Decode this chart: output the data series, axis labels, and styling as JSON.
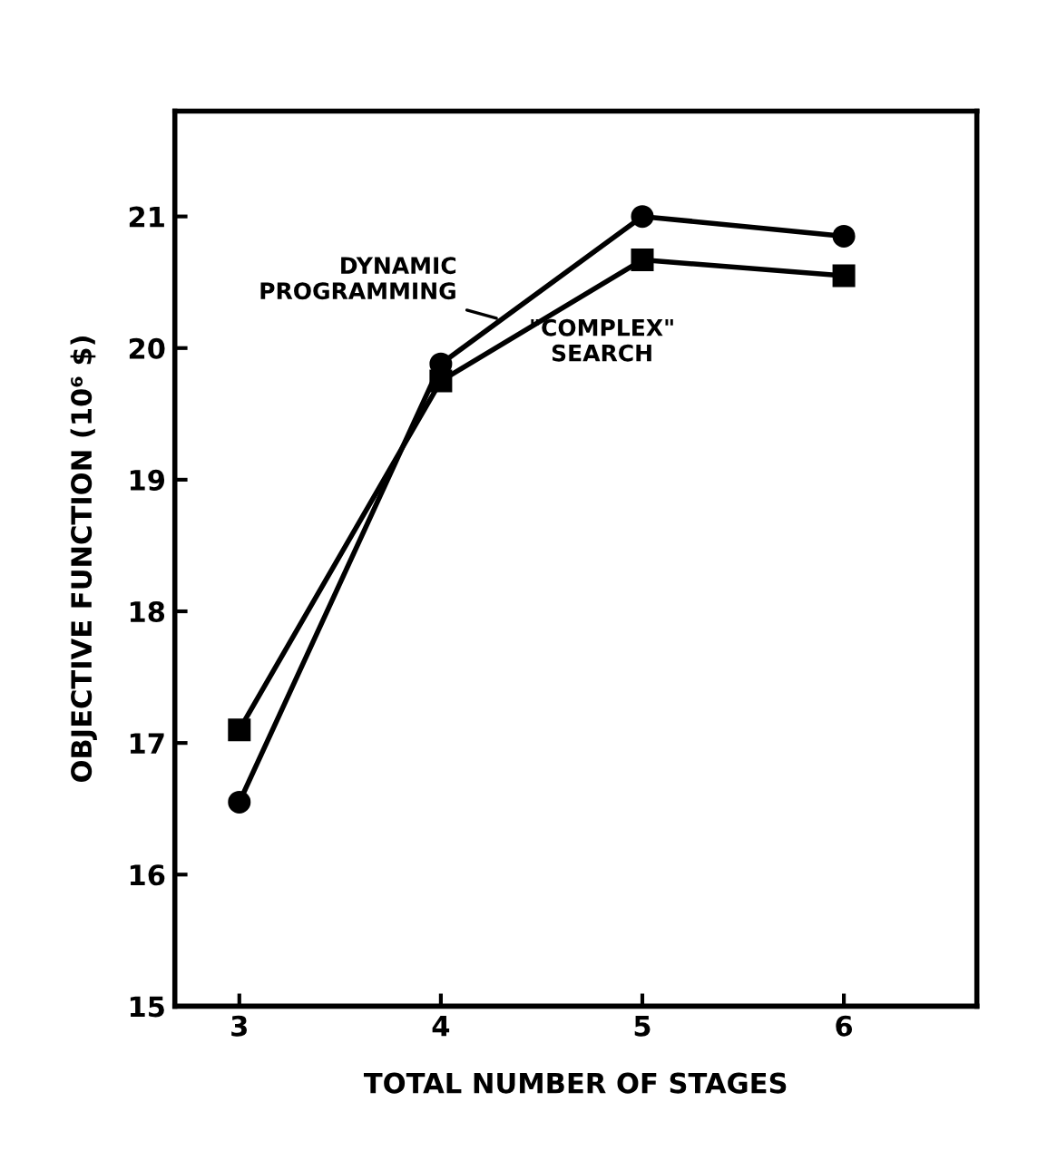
{
  "chart_data": {
    "type": "line",
    "xlabel": "TOTAL NUMBER OF STAGES",
    "ylabel": "OBJECTIVE FUNCTION (10⁶ $)",
    "x": [
      3,
      4,
      5,
      6
    ],
    "series": [
      {
        "name": "DYNAMIC\nPROGRAMMING",
        "color": "#000000",
        "marker": "circle",
        "values": [
          16.55,
          19.88,
          21.0,
          20.85
        ]
      },
      {
        "name": "\"COMPLEX\"\nSEARCH",
        "color": "#000000",
        "marker": "square",
        "values": [
          17.1,
          19.75,
          20.67,
          20.55
        ]
      }
    ],
    "xlim": [
      2.68,
      6.66
    ],
    "ylim": [
      15,
      21.8
    ],
    "xticks": [
      3,
      4,
      5,
      6
    ],
    "yticks": [
      15,
      16,
      17,
      18,
      19,
      20,
      21
    ],
    "grid": false,
    "legend": false,
    "line_style": "solid"
  }
}
